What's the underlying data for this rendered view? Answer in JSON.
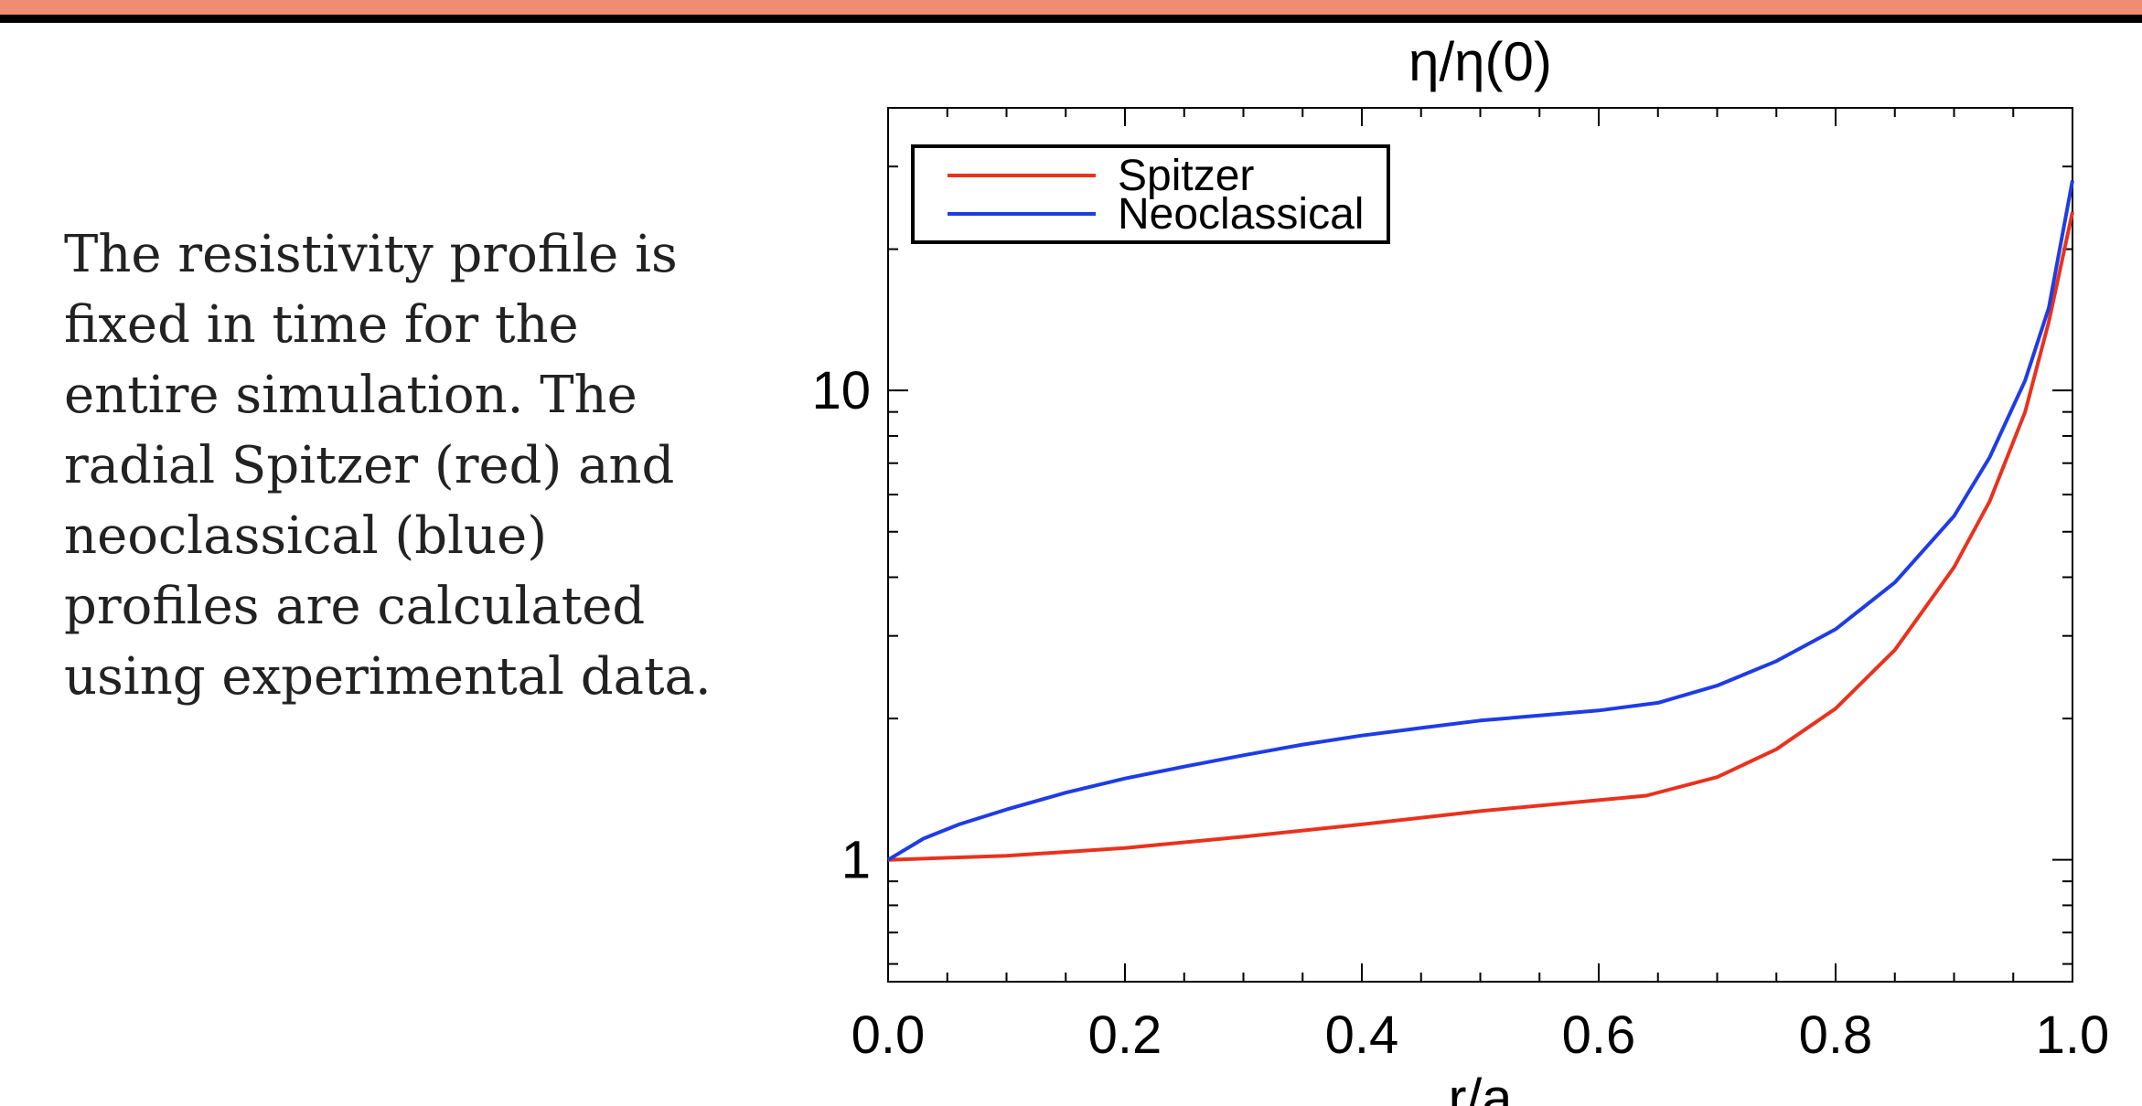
{
  "slide": {
    "band_color": "#f08c72",
    "body_text": "The resistivity profile is fixed in time for the entire simulation. The radial Spitzer (red) and neoclassical (blue) profiles are calculated using experimental data."
  },
  "chart_data": {
    "type": "line",
    "title": "η/η(0)",
    "xlabel": "r/a",
    "ylabel": "",
    "xlim": [
      0.0,
      1.0
    ],
    "ylim": [
      0.55,
      40
    ],
    "yscale": "log",
    "grid": false,
    "legend_position": "top-left",
    "x_ticks": [
      "0.0",
      "0.2",
      "0.4",
      "0.6",
      "0.8",
      "1.0"
    ],
    "y_ticks": [
      "1",
      "10"
    ],
    "series": [
      {
        "name": "Spitzer",
        "color": "#e8321e",
        "x": [
          0.0,
          0.1,
          0.2,
          0.3,
          0.4,
          0.5,
          0.6,
          0.64,
          0.7,
          0.75,
          0.8,
          0.85,
          0.9,
          0.93,
          0.96,
          0.98,
          1.0
        ],
        "y": [
          1.0,
          1.02,
          1.06,
          1.12,
          1.19,
          1.27,
          1.34,
          1.37,
          1.5,
          1.72,
          2.1,
          2.8,
          4.2,
          5.8,
          9.0,
          14.0,
          24.0
        ]
      },
      {
        "name": "Neoclassical",
        "color": "#1e3ce6",
        "x": [
          0.0,
          0.03,
          0.06,
          0.1,
          0.15,
          0.2,
          0.25,
          0.3,
          0.35,
          0.4,
          0.45,
          0.5,
          0.55,
          0.6,
          0.65,
          0.7,
          0.75,
          0.8,
          0.85,
          0.9,
          0.93,
          0.96,
          0.98,
          1.0
        ],
        "y": [
          1.0,
          1.11,
          1.19,
          1.28,
          1.39,
          1.49,
          1.58,
          1.67,
          1.76,
          1.84,
          1.91,
          1.98,
          2.03,
          2.08,
          2.16,
          2.35,
          2.65,
          3.1,
          3.9,
          5.4,
          7.2,
          10.5,
          15.0,
          28.0
        ]
      }
    ]
  }
}
